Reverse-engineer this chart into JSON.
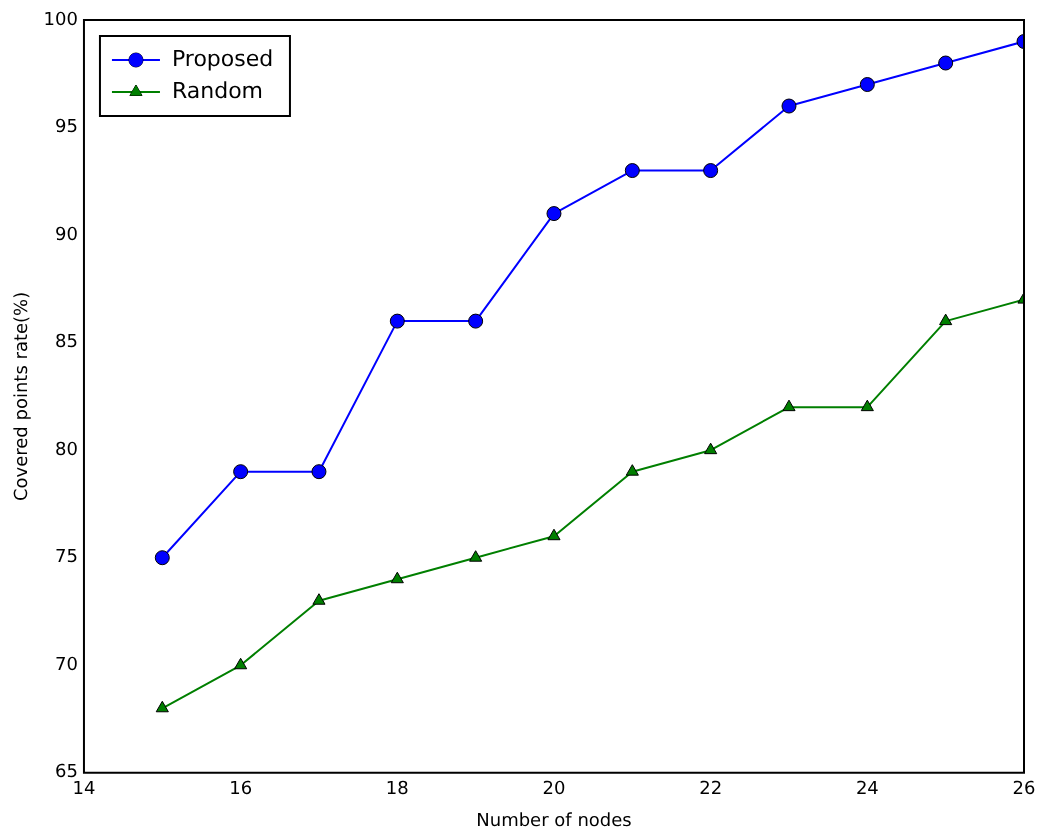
{
  "chart_data": {
    "type": "line",
    "xlabel": "Number of nodes",
    "ylabel": "Covered points rate(%)",
    "x": [
      15,
      16,
      17,
      18,
      19,
      20,
      21,
      22,
      23,
      24,
      25,
      26
    ],
    "series": [
      {
        "name": "Proposed",
        "color": "#0000ff",
        "marker": "circle",
        "values": [
          75,
          79,
          79,
          86,
          86,
          91,
          93,
          93,
          96,
          97,
          98,
          99
        ]
      },
      {
        "name": "Random",
        "color": "#007f00",
        "marker": "triangle",
        "values": [
          68,
          70,
          73,
          74,
          75,
          76,
          79,
          80,
          82,
          82,
          86,
          87
        ]
      }
    ],
    "xlim": [
      14,
      26
    ],
    "xticks": [
      14,
      16,
      18,
      20,
      22,
      24,
      26
    ],
    "ylim": [
      65,
      100
    ],
    "yticks": [
      65,
      70,
      75,
      80,
      85,
      90,
      95,
      100
    ],
    "grid": false,
    "legend": "top left",
    "line_style": "solid"
  }
}
